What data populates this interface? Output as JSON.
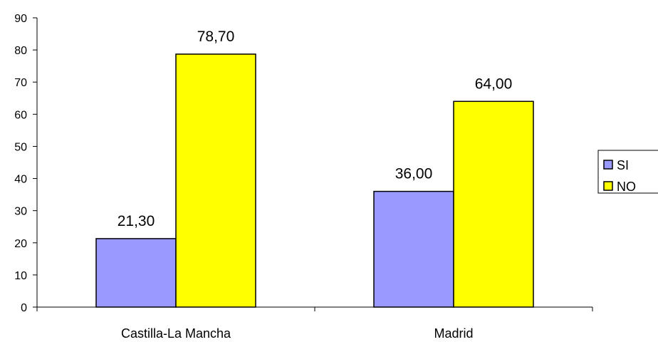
{
  "chart_data": {
    "type": "bar",
    "title": "",
    "xlabel": "",
    "ylabel": "",
    "categories": [
      "Castilla-La Mancha",
      "Madrid"
    ],
    "series": [
      {
        "name": "SI",
        "values": [
          21.3,
          36.0
        ],
        "value_labels": [
          "21,30",
          "36,00"
        ],
        "color": "#9999ff"
      },
      {
        "name": "NO",
        "values": [
          78.7,
          64.0
        ],
        "value_labels": [
          "78,70",
          "64,00"
        ],
        "color": "#ffff00"
      }
    ],
    "ylim": [
      0,
      90
    ],
    "yticks": [
      "0",
      "10",
      "20",
      "30",
      "40",
      "50",
      "60",
      "70",
      "80",
      "90"
    ],
    "grid": false,
    "legend_position": "right"
  }
}
